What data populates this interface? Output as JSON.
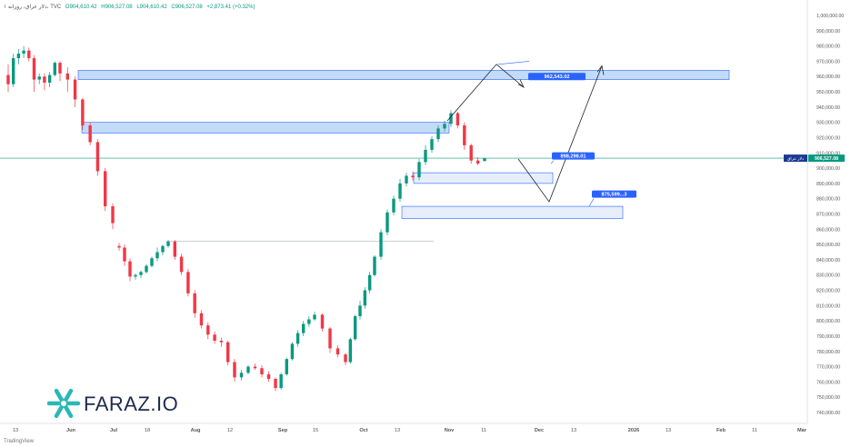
{
  "header": {
    "symbol": "۱ دلار عراق، روزانه، TVC",
    "open": "O904,610.42",
    "high": "H906,527.08",
    "low": "L904,610.42",
    "close": "C906,527.08",
    "change": "+2,873.41 (+0.32%)"
  },
  "footer": {
    "brand": "TradingView"
  },
  "watermark": {
    "text": "FARAZ.IO"
  },
  "colors": {
    "up": "#089981",
    "down": "#f23645",
    "zone_fill": "#bbd7f5",
    "zone_border": "#2962ff",
    "callout": "#2962ff",
    "price_line": "#089981",
    "logo_teal": "#2ab7b9",
    "logo_dark": "#1d2b4f"
  },
  "chart_data": {
    "type": "candlestick",
    "title": "",
    "xlabel": "",
    "ylabel": "",
    "ylim": [
      735000,
      1005000
    ],
    "y_ticks": [
      "1,000,000.00",
      "990,000.00",
      "980,000.00",
      "970,000.00",
      "960,000.00",
      "950,000.00",
      "940,000.00",
      "930,000.00",
      "920,000.00",
      "910,000.00",
      "900,000.00",
      "890,000.00",
      "880,000.00",
      "870,000.00",
      "860,000.00",
      "850,000.00",
      "840,000.00",
      "830,000.00",
      "820,000.00",
      "810,000.00",
      "800,000.00",
      "790,000.00",
      "780,000.00",
      "770,000.00",
      "760,000.00",
      "750,000.00",
      "740,000.00"
    ],
    "x_labels": [
      "13",
      "Jun",
      "Jul",
      "18",
      "Aug",
      "12",
      "Sep",
      "15",
      "Oct",
      "13",
      "Nov",
      "11",
      "Dec",
      "13",
      "2026",
      "13",
      "Feb",
      "11",
      "Mar"
    ],
    "current_price_label": "906,527.08",
    "current_price_name": "دلار عراق",
    "current_price": 906527.08,
    "candles": [
      [
        961000,
        968000,
        950000,
        955000
      ],
      [
        955000,
        975000,
        953000,
        972000
      ],
      [
        972000,
        978000,
        968000,
        975000
      ],
      [
        975000,
        980000,
        972000,
        977000
      ],
      [
        977000,
        979000,
        970000,
        972000
      ],
      [
        972000,
        974000,
        950000,
        958000
      ],
      [
        958000,
        962000,
        955000,
        960000
      ],
      [
        960000,
        962000,
        951000,
        956000
      ],
      [
        956000,
        963000,
        953000,
        961000
      ],
      [
        961000,
        970000,
        960000,
        969000
      ],
      [
        969000,
        970000,
        957000,
        962000
      ],
      [
        962000,
        966000,
        950000,
        958000
      ],
      [
        958000,
        960000,
        940000,
        945000
      ],
      [
        945000,
        946000,
        925000,
        928000
      ],
      [
        928000,
        930000,
        915000,
        917000
      ],
      [
        917000,
        919000,
        895000,
        898000
      ],
      [
        898000,
        900000,
        872000,
        875000
      ],
      [
        875000,
        877000,
        860000,
        864000
      ],
      [
        849000,
        851000,
        846000,
        848000
      ],
      [
        848000,
        850000,
        836000,
        839000
      ],
      [
        839000,
        841000,
        826000,
        829000
      ],
      [
        829000,
        831000,
        827000,
        830000
      ],
      [
        830000,
        833000,
        828000,
        832000
      ],
      [
        832000,
        837000,
        831000,
        836000
      ],
      [
        836000,
        842000,
        835000,
        841000
      ],
      [
        841000,
        848000,
        839000,
        845000
      ],
      [
        845000,
        850000,
        843000,
        849000
      ],
      [
        849000,
        853000,
        848000,
        852000
      ],
      [
        852000,
        853000,
        840000,
        842000
      ],
      [
        842000,
        844000,
        830000,
        832000
      ],
      [
        832000,
        834000,
        816000,
        818000
      ],
      [
        818000,
        820000,
        802000,
        805000
      ],
      [
        805000,
        807000,
        795000,
        797000
      ],
      [
        797000,
        799000,
        788000,
        791000
      ],
      [
        791000,
        793000,
        785000,
        787000
      ],
      [
        787000,
        789000,
        783000,
        786000
      ],
      [
        786000,
        787000,
        771000,
        773000
      ],
      [
        773000,
        775000,
        760000,
        763000
      ],
      [
        763000,
        768000,
        761000,
        766000
      ],
      [
        766000,
        771000,
        765000,
        770000
      ],
      [
        770000,
        772000,
        768000,
        769000
      ],
      [
        769000,
        771000,
        763000,
        765000
      ],
      [
        765000,
        767000,
        760000,
        762000
      ],
      [
        762000,
        763000,
        754000,
        756000
      ],
      [
        756000,
        766000,
        755000,
        765000
      ],
      [
        765000,
        776000,
        764000,
        775000
      ],
      [
        775000,
        786000,
        774000,
        785000
      ],
      [
        785000,
        794000,
        783000,
        792000
      ],
      [
        792000,
        800000,
        790000,
        798000
      ],
      [
        798000,
        803000,
        796000,
        801000
      ],
      [
        801000,
        806000,
        800000,
        804000
      ],
      [
        804000,
        805000,
        793000,
        795000
      ],
      [
        795000,
        796000,
        779000,
        782000
      ],
      [
        782000,
        784000,
        776000,
        778000
      ],
      [
        778000,
        779000,
        771000,
        773000
      ],
      [
        773000,
        789000,
        772000,
        788000
      ],
      [
        788000,
        804000,
        787000,
        803000
      ],
      [
        803000,
        813000,
        801000,
        810000
      ],
      [
        810000,
        822000,
        808000,
        820000
      ],
      [
        820000,
        832000,
        818000,
        830000
      ],
      [
        830000,
        843000,
        829000,
        842000
      ],
      [
        842000,
        860000,
        840000,
        858000
      ],
      [
        858000,
        873000,
        856000,
        871000
      ],
      [
        871000,
        882000,
        869000,
        880000
      ],
      [
        880000,
        893000,
        878000,
        890000
      ],
      [
        890000,
        897000,
        888000,
        895000
      ],
      [
        895000,
        898000,
        892000,
        894000
      ],
      [
        894000,
        906000,
        892000,
        904000
      ],
      [
        904000,
        915000,
        902000,
        912000
      ],
      [
        912000,
        921000,
        910000,
        919000
      ],
      [
        919000,
        928000,
        917000,
        926000
      ],
      [
        926000,
        931000,
        924000,
        929000
      ],
      [
        929000,
        938000,
        927000,
        936000
      ],
      [
        936000,
        937000,
        926000,
        928000
      ],
      [
        928000,
        930000,
        912000,
        915000
      ],
      [
        915000,
        916000,
        903000,
        905000
      ],
      [
        905000,
        907000,
        902000,
        903000
      ],
      [
        904610,
        906527,
        904610,
        906527
      ]
    ],
    "zones": [
      {
        "name": "zone-top",
        "y1": 964000,
        "y2": 958000
      },
      {
        "name": "zone-upper",
        "y1": 930000,
        "y2": 923000
      },
      {
        "name": "zone-mid",
        "y1": 897000,
        "y2": 890000
      },
      {
        "name": "zone-low",
        "y1": 875000,
        "y2": 867000
      }
    ],
    "resistance_line": 852000,
    "annotations": [
      {
        "label": "962,543.02",
        "value": 962543.02
      },
      {
        "label": "898,298.01",
        "value": 898298.01
      },
      {
        "label": "875,599...3",
        "value": 875599
      }
    ]
  }
}
